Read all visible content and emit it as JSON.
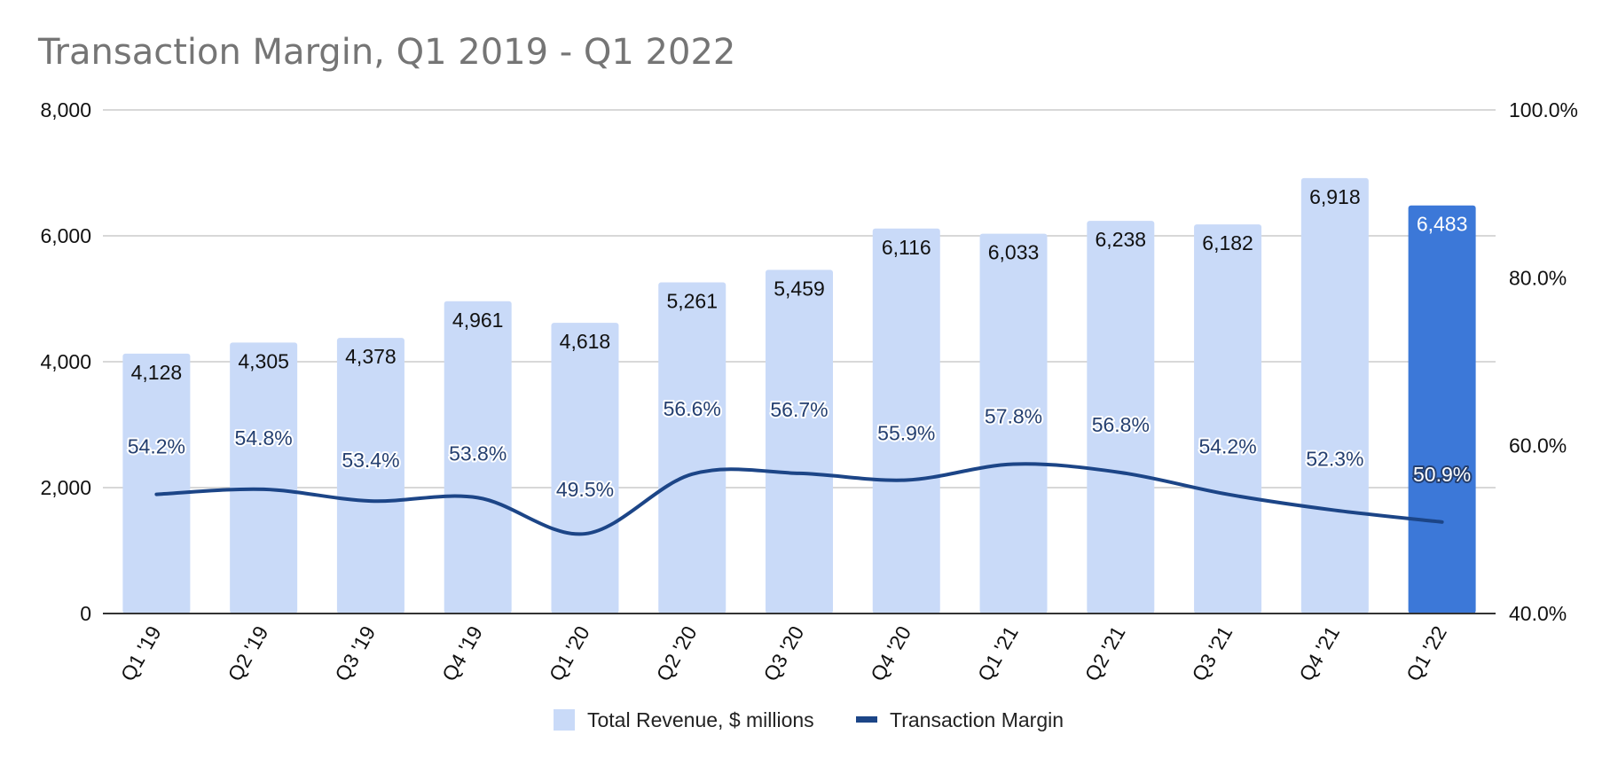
{
  "chart_data": {
    "type": "bar",
    "title": "Transaction Margin, Q1 2019 - Q1 2022",
    "categories": [
      "Q1 '19",
      "Q2 '19",
      "Q3 '19",
      "Q4 '19",
      "Q1 '20",
      "Q2 '20",
      "Q3 '20",
      "Q4 '20",
      "Q1 '21",
      "Q2 '21",
      "Q3 '21",
      "Q4 '21",
      "Q1 '22"
    ],
    "series": [
      {
        "name": "Total Revenue, $ millions",
        "type": "bar",
        "axis": "left",
        "values": [
          4128,
          4305,
          4378,
          4961,
          4618,
          5261,
          5459,
          6116,
          6033,
          6238,
          6182,
          6918,
          6483
        ],
        "labels": [
          "4,128",
          "4,305",
          "4,378",
          "4,961",
          "4,618",
          "5,261",
          "5,459",
          "6,116",
          "6,033",
          "6,238",
          "6,182",
          "6,918",
          "6,483"
        ],
        "color": "#c9daf8",
        "highlight_index": 12,
        "highlight_color": "#3c78d8"
      },
      {
        "name": "Transaction Margin",
        "type": "line",
        "axis": "right",
        "values": [
          54.2,
          54.8,
          53.4,
          53.8,
          49.5,
          56.6,
          56.7,
          55.9,
          57.8,
          56.8,
          54.2,
          52.3,
          50.9
        ],
        "labels": [
          "54.2%",
          "54.8%",
          "53.4%",
          "53.8%",
          "49.5%",
          "56.6%",
          "56.7%",
          "55.9%",
          "57.8%",
          "56.8%",
          "54.2%",
          "52.3%",
          "50.9%"
        ],
        "color": "#1c4587"
      }
    ],
    "y_left": {
      "range": [
        0,
        8000
      ],
      "ticks": [
        0,
        2000,
        4000,
        6000,
        8000
      ],
      "tick_labels": [
        "0",
        "2,000",
        "4,000",
        "6,000",
        "8,000"
      ]
    },
    "y_right": {
      "range": [
        40,
        100
      ],
      "ticks": [
        40,
        60,
        80,
        100
      ],
      "tick_labels": [
        "40.0%",
        "60.0%",
        "80.0%",
        "100.0%"
      ]
    },
    "grid": true,
    "legend_position": "bottom"
  }
}
